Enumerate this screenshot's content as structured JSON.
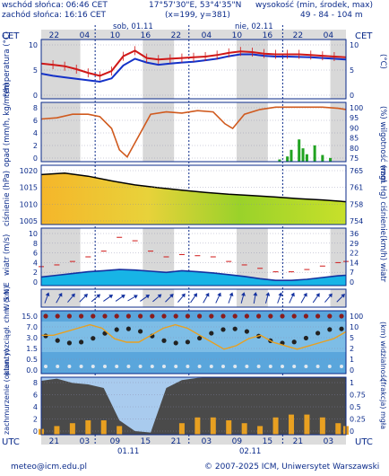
{
  "header": {
    "sunrise": "wschód słońca: 06:46 CET",
    "sunset": "zachód słońca: 16:16 CET",
    "coords": "17°57'30\"E, 53°4'35\"N",
    "grid": "(x=199, y=381)",
    "altitude_label": "wysokość (min, środek, max)",
    "altitude_values": "49 - 84 - 104 m"
  },
  "time_axis": {
    "tz_top": "CET",
    "tz_bottom": "UTC",
    "top_hours": [
      "22",
      "04",
      "10",
      "16",
      "22",
      "04",
      "10",
      "16",
      "22",
      "04"
    ],
    "bottom_hours": [
      "21",
      "03",
      "09",
      "15",
      "21",
      "03",
      "09",
      "15",
      "21",
      "03"
    ],
    "top_days": [
      "sob, 01.11",
      "nie, 02.11"
    ],
    "bottom_days": [
      "01.11",
      "02.11"
    ]
  },
  "footer": {
    "email": "meteo@icm.edu.pl",
    "copyright": "© 2007-2025 ICM, Uniwersytet Warszawski"
  },
  "colors": {
    "night_band": "#d8d8d8",
    "temp_max": "#d01818",
    "temp_min": "#1432c8",
    "humidity": "#d05a1e",
    "pressure_line": "#000000",
    "wind_speed": "#1432a0",
    "gust": "#d01818"
  },
  "chart_data": [
    {
      "type": "line",
      "ylabel_left": "temperatura (°C)",
      "ylabel_right": "(°C)",
      "yticks_left": [
        "10",
        "5",
        "0"
      ],
      "yticks_right": [
        "10",
        "5",
        "0"
      ],
      "ylim": [
        -2,
        14
      ],
      "x_hours": [
        0,
        3,
        6,
        9,
        12,
        15,
        18,
        21,
        24,
        27,
        30,
        33,
        36,
        39,
        42,
        45,
        48,
        51,
        54,
        57,
        60,
        63,
        66,
        69,
        72,
        75,
        78
      ],
      "series": [
        {
          "values": [
            7.5,
            7.2,
            6.8,
            6.0,
            5.0,
            4.2,
            5.5,
            9.5,
            11.0,
            9.0,
            8.6,
            8.8,
            9.0,
            9.2,
            9.4,
            9.8,
            10.4,
            10.8,
            10.6,
            10.2,
            10.0,
            10.0,
            10.0,
            9.8,
            9.6,
            9.4,
            9.2
          ]
        },
        {
          "values": [
            4.8,
            4.2,
            3.8,
            3.4,
            3.0,
            2.6,
            3.5,
            7.0,
            8.8,
            7.8,
            7.2,
            7.5,
            7.8,
            8.0,
            8.4,
            8.8,
            9.5,
            10.0,
            10.0,
            9.6,
            9.4,
            9.4,
            9.3,
            9.2,
            9.0,
            8.8,
            8.6
          ]
        }
      ]
    },
    {
      "type": "line",
      "ylabel_left": "opad (mm/h, kg/m²/h)",
      "ylabel_right": "(%) wilgotność wzgl.",
      "yticks_left": [
        "8",
        "6",
        "4",
        "2",
        "0"
      ],
      "yticks_right": [
        "100",
        "95",
        "90",
        "85",
        "80",
        "75"
      ],
      "ylim": [
        75,
        100
      ],
      "x_hours": [
        0,
        4,
        8,
        12,
        15,
        18,
        20,
        22,
        25,
        28,
        32,
        36,
        40,
        44,
        47,
        49,
        52,
        56,
        60,
        64,
        68,
        72,
        76,
        78
      ],
      "series": [
        {
          "values": [
            93,
            93.5,
            95,
            95,
            94,
            89,
            80,
            77,
            86,
            95,
            96,
            95.5,
            96.5,
            96,
            91,
            89,
            95,
            97,
            98,
            98,
            98,
            98,
            97.5,
            97
          ]
        }
      ],
      "precipitation": [
        {
          "x": 61,
          "value": 0.3
        },
        {
          "x": 63,
          "value": 0.7
        },
        {
          "x": 64,
          "value": 1.6
        },
        {
          "x": 66,
          "value": 3.0
        },
        {
          "x": 67,
          "value": 1.8
        },
        {
          "x": 68,
          "value": 1.0
        },
        {
          "x": 70,
          "value": 2.2
        },
        {
          "x": 72,
          "value": 0.9
        },
        {
          "x": 74,
          "value": 0.5
        }
      ]
    },
    {
      "type": "area",
      "ylabel_left": "ciśnienie (hPa)",
      "ylabel_right": "(mm Hg) ciśnienie",
      "yticks_left": [
        "1020",
        "1015",
        "1010",
        "1005"
      ],
      "yticks_right": [
        "765",
        "761",
        "758",
        "754"
      ],
      "ylim": [
        1003,
        1022
      ],
      "x_hours": [
        0,
        6,
        12,
        18,
        24,
        30,
        36,
        42,
        48,
        54,
        60,
        66,
        72,
        78
      ],
      "series": [
        {
          "values": [
            1019,
            1019.5,
            1018.5,
            1017,
            1015.7,
            1014.8,
            1014,
            1013.3,
            1012.7,
            1012.3,
            1011.8,
            1011.3,
            1010.9,
            1010.3
          ]
        }
      ]
    },
    {
      "type": "line",
      "ylabel_left": "wiatr (m/s)",
      "ylabel_right": "(km/h) wiatr",
      "yticks_left": [
        "10",
        "8",
        "6",
        "4",
        "2",
        "0"
      ],
      "yticks_right": [
        "36",
        "29",
        "22",
        "14",
        "7",
        "0"
      ],
      "ylim": [
        0,
        10
      ],
      "x_hours": [
        0,
        4,
        8,
        12,
        16,
        20,
        24,
        28,
        32,
        36,
        40,
        44,
        48,
        52,
        56,
        60,
        64,
        68,
        72,
        76,
        78
      ],
      "series": [
        {
          "values": [
            1.5,
            1.8,
            2.1,
            2.4,
            2.6,
            2.8,
            2.7,
            2.5,
            2.3,
            2.6,
            2.4,
            2.2,
            1.9,
            1.6,
            1.2,
            0.9,
            0.9,
            1.1,
            1.4,
            1.7,
            1.8
          ]
        },
        {
          "values": [
            3.3,
            3.6,
            4.2,
            5.0,
            6.0,
            8.4,
            7.8,
            6.0,
            5.0,
            5.4,
            5.2,
            5.0,
            4.2,
            3.6,
            3.0,
            2.4,
            2.4,
            2.8,
            3.4,
            4.0,
            4.2
          ]
        }
      ]
    },
    {
      "type": "scatter",
      "ylabel_left": "W S N E",
      "wind_direction_deg": [
        200,
        210,
        220,
        225,
        230,
        235,
        235,
        240,
        235,
        230,
        225,
        220,
        215,
        210,
        205,
        200,
        195,
        190,
        195,
        200,
        205,
        210,
        215,
        220,
        225
      ]
    },
    {
      "type": "scatter",
      "ylabel_left": "pion. rozciągł. chm. (km)",
      "ylabel_right": "(km) widzialność",
      "yticks_left": [
        "15.0",
        "7.0",
        "3.0",
        "1.5",
        "0.5",
        "0.0"
      ],
      "yticks_right": [
        "100",
        "10",
        "5",
        "2",
        "1",
        "0"
      ],
      "visibility_km": [
        5,
        5,
        5.5,
        6,
        6.5,
        6,
        4.5,
        4,
        4,
        5,
        6,
        6.5,
        6,
        5,
        4,
        3,
        3.5,
        4.5,
        5,
        4,
        3.5,
        3,
        3.5,
        4,
        4.5,
        5.5
      ]
    },
    {
      "type": "area",
      "ylabel_left": "zachmurzenie (oktanty)",
      "ylabel_right": "(frakcja) mgła",
      "yticks_left": [
        "8",
        "6",
        "4",
        "2",
        "0"
      ],
      "yticks_right": [
        "1",
        "0.75",
        "0.5",
        "0.25",
        "0"
      ],
      "ylim": [
        0,
        8
      ],
      "x_hours": [
        0,
        4,
        8,
        12,
        16,
        20,
        24,
        28,
        32,
        36,
        40,
        44,
        48,
        52,
        56,
        60,
        64,
        68,
        72,
        76,
        78
      ],
      "series": [
        {
          "values": [
            7.5,
            7.8,
            7.2,
            7.0,
            6.5,
            2.0,
            0.5,
            0.3,
            6.5,
            7.6,
            7.9,
            8.0,
            8.0,
            8.0,
            8.0,
            8.0,
            8.0,
            8.0,
            8.0,
            8.0,
            8.0
          ]
        }
      ],
      "fog_fraction": [
        0.1,
        0.15,
        0.2,
        0.25,
        0.25,
        0.15,
        0,
        0,
        0,
        0.2,
        0.3,
        0.3,
        0.25,
        0.2,
        0.15,
        0.3,
        0.35,
        0.35,
        0.3,
        0.2,
        0.15
      ]
    }
  ]
}
